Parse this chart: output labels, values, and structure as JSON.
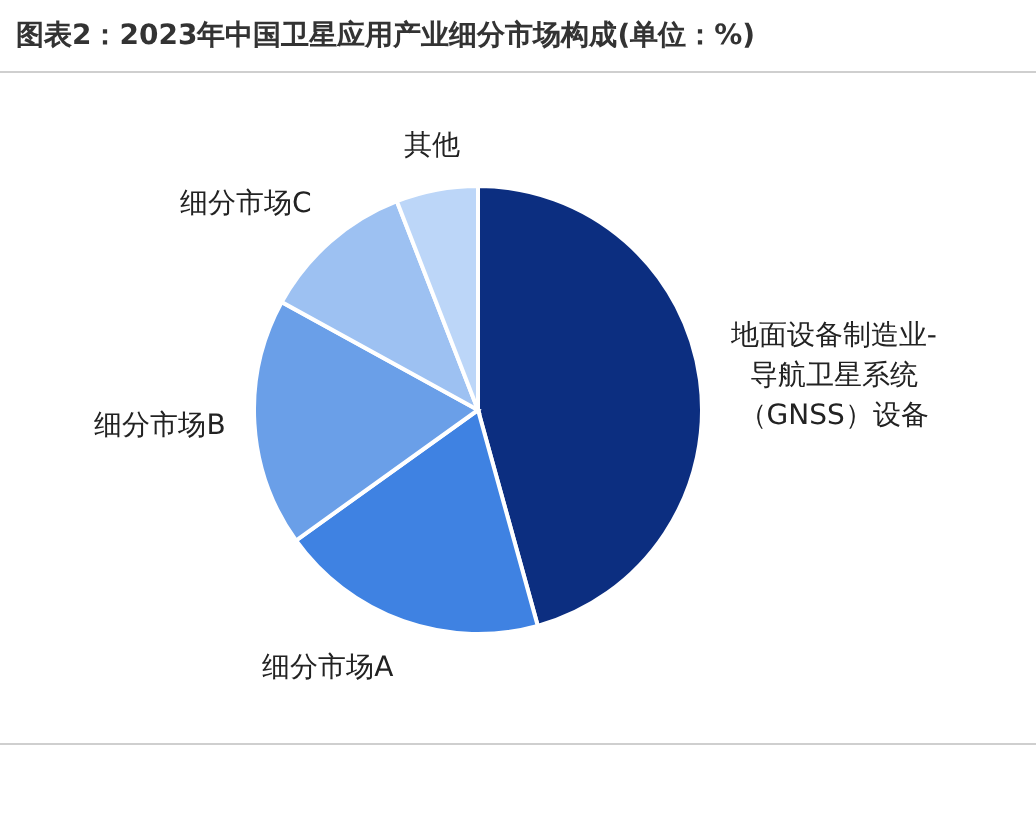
{
  "chart_data": {
    "type": "pie",
    "title": "图表2：2023年中国卫星应用产业细分市场构成(单位：%)",
    "categories": [
      "地面设备制造业-导航卫星系统（GNSS）设备",
      "细分市场A",
      "细分市场B",
      "细分市场C",
      "其他"
    ],
    "values": [
      45.7,
      19.4,
      17.9,
      11.1,
      5.9
    ],
    "colors": [
      "#0c2e80",
      "#3f82e2",
      "#6a9fe8",
      "#9dc1f2",
      "#bcd6f8"
    ]
  }
}
